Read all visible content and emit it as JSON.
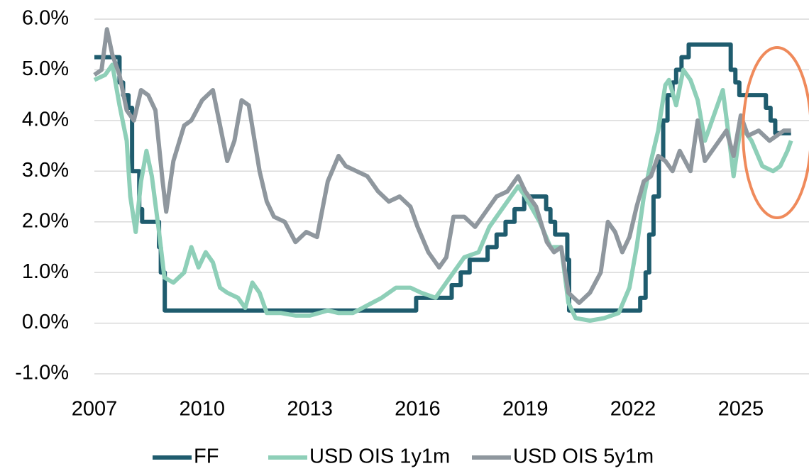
{
  "chart_data": {
    "type": "line",
    "xlim": [
      2007,
      2026.9
    ],
    "xticks": [
      2007,
      2010,
      2013,
      2016,
      2019,
      2022,
      2025
    ],
    "ylim": [
      -1,
      6
    ],
    "yticks": [
      {
        "value": -1,
        "label": "-1.0%"
      },
      {
        "value": 0,
        "label": "0.0%"
      },
      {
        "value": 1,
        "label": "1.0%"
      },
      {
        "value": 2,
        "label": "2.0%"
      },
      {
        "value": 3,
        "label": "3.0%"
      },
      {
        "value": 4,
        "label": "4.0%"
      },
      {
        "value": 5,
        "label": "5.0%"
      },
      {
        "value": 6,
        "label": "6.0%"
      }
    ],
    "grid": true,
    "legend": "bottom",
    "series": [
      {
        "name": "FF",
        "color": "#1f5c6e",
        "drawstyle": "steps-post",
        "x": [
          2007.0,
          2007.7,
          2007.8,
          2007.95,
          2008.05,
          2008.25,
          2008.33,
          2008.8,
          2008.85,
          2008.96,
          2015.96,
          2016.95,
          2017.2,
          2017.45,
          2017.95,
          2018.2,
          2018.45,
          2018.7,
          2018.97,
          2019.58,
          2019.7,
          2019.83,
          2020.17,
          2020.22,
          2022.2,
          2022.35,
          2022.45,
          2022.57,
          2022.72,
          2022.84,
          2022.96,
          2023.1,
          2023.2,
          2023.35,
          2023.55,
          2024.72,
          2024.85,
          2024.96,
          2025.7,
          2025.83,
          2025.96,
          2026.4
        ],
        "values": [
          5.25,
          4.75,
          4.5,
          4.25,
          3.0,
          2.25,
          2.0,
          1.5,
          1.0,
          0.25,
          0.5,
          0.75,
          1.0,
          1.25,
          1.5,
          1.75,
          2.0,
          2.25,
          2.5,
          2.25,
          2.0,
          1.75,
          1.25,
          0.25,
          0.5,
          1.0,
          1.75,
          2.5,
          3.25,
          4.0,
          4.5,
          4.75,
          5.0,
          5.25,
          5.5,
          5.0,
          4.75,
          4.5,
          4.25,
          4.0,
          3.75,
          3.75
        ]
      },
      {
        "name": "USD OIS 1y1m",
        "color": "#8ecfb8",
        "x": [
          2007.0,
          2007.3,
          2007.5,
          2007.7,
          2007.9,
          2008.0,
          2008.15,
          2008.3,
          2008.45,
          2008.6,
          2008.8,
          2008.95,
          2009.2,
          2009.5,
          2009.7,
          2009.9,
          2010.1,
          2010.3,
          2010.5,
          2010.7,
          2011.0,
          2011.2,
          2011.4,
          2011.6,
          2011.8,
          2012.2,
          2012.6,
          2013.0,
          2013.5,
          2013.8,
          2014.2,
          2014.6,
          2015.0,
          2015.4,
          2015.8,
          2016.1,
          2016.5,
          2016.9,
          2017.3,
          2017.7,
          2018.0,
          2018.4,
          2018.8,
          2019.0,
          2019.4,
          2019.7,
          2020.0,
          2020.2,
          2020.4,
          2020.8,
          2021.2,
          2021.6,
          2021.9,
          2022.1,
          2022.3,
          2022.5,
          2022.7,
          2022.9,
          2023.0,
          2023.2,
          2023.4,
          2023.6,
          2023.8,
          2024.0,
          2024.3,
          2024.5,
          2024.7,
          2024.8,
          2025.0,
          2025.3,
          2025.6,
          2025.9,
          2026.1,
          2026.3,
          2026.4
        ],
        "values": [
          4.8,
          4.9,
          5.1,
          4.3,
          3.6,
          2.5,
          1.8,
          2.8,
          3.4,
          2.9,
          1.8,
          0.9,
          0.8,
          1.0,
          1.5,
          1.1,
          1.4,
          1.2,
          0.7,
          0.6,
          0.5,
          0.3,
          0.8,
          0.6,
          0.2,
          0.2,
          0.15,
          0.15,
          0.25,
          0.2,
          0.2,
          0.35,
          0.5,
          0.7,
          0.7,
          0.6,
          0.5,
          0.9,
          1.3,
          1.4,
          1.9,
          2.3,
          2.7,
          2.5,
          2.0,
          1.5,
          1.5,
          0.4,
          0.1,
          0.05,
          0.1,
          0.2,
          0.7,
          1.5,
          2.5,
          3.2,
          3.8,
          4.7,
          4.8,
          4.3,
          5.0,
          4.8,
          4.4,
          3.6,
          4.2,
          4.6,
          3.5,
          2.9,
          3.9,
          3.6,
          3.1,
          3.0,
          3.1,
          3.4,
          3.6
        ]
      },
      {
        "name": "USD OIS 5y1m",
        "color": "#8f979e",
        "x": [
          2007.0,
          2007.2,
          2007.35,
          2007.5,
          2007.7,
          2007.9,
          2008.1,
          2008.3,
          2008.5,
          2008.7,
          2008.9,
          2009.0,
          2009.2,
          2009.5,
          2009.7,
          2010.0,
          2010.3,
          2010.5,
          2010.7,
          2010.9,
          2011.1,
          2011.3,
          2011.6,
          2011.8,
          2012.0,
          2012.3,
          2012.6,
          2012.9,
          2013.2,
          2013.5,
          2013.8,
          2014.0,
          2014.3,
          2014.6,
          2014.9,
          2015.2,
          2015.5,
          2015.8,
          2016.0,
          2016.3,
          2016.6,
          2016.8,
          2017.0,
          2017.3,
          2017.6,
          2017.9,
          2018.2,
          2018.5,
          2018.8,
          2019.0,
          2019.3,
          2019.6,
          2019.8,
          2020.0,
          2020.2,
          2020.5,
          2020.8,
          2021.1,
          2021.3,
          2021.5,
          2021.7,
          2021.9,
          2022.1,
          2022.3,
          2022.5,
          2022.7,
          2022.9,
          2023.1,
          2023.3,
          2023.6,
          2023.8,
          2024.0,
          2024.3,
          2024.6,
          2024.8,
          2025.0,
          2025.2,
          2025.5,
          2025.8,
          2026.0,
          2026.2,
          2026.4
        ],
        "values": [
          4.9,
          5.0,
          5.8,
          5.3,
          4.9,
          4.2,
          4.0,
          4.6,
          4.5,
          4.2,
          2.8,
          2.2,
          3.2,
          3.9,
          4.0,
          4.4,
          4.6,
          3.9,
          3.2,
          3.6,
          4.4,
          4.3,
          3.0,
          2.4,
          2.1,
          2.0,
          1.6,
          1.8,
          1.7,
          2.8,
          3.3,
          3.1,
          3.0,
          2.9,
          2.6,
          2.4,
          2.5,
          2.3,
          1.9,
          1.4,
          1.1,
          1.3,
          2.1,
          2.1,
          1.9,
          2.2,
          2.5,
          2.6,
          2.9,
          2.6,
          2.3,
          1.6,
          1.4,
          1.5,
          0.6,
          0.4,
          0.6,
          1.0,
          2.0,
          1.8,
          1.4,
          1.7,
          2.3,
          2.8,
          2.9,
          3.3,
          3.2,
          3.0,
          3.4,
          3.0,
          4.0,
          3.2,
          3.5,
          3.8,
          3.3,
          4.1,
          3.7,
          3.8,
          3.6,
          3.7,
          3.8,
          3.8
        ]
      }
    ]
  }
}
